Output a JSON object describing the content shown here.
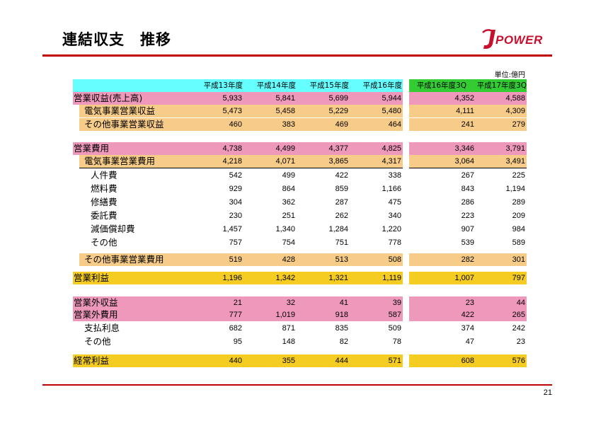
{
  "title": "連結収支　推移",
  "logo_text": "POWER",
  "page_number": "21",
  "unit": "単位:億円",
  "columns": [
    "平成13年度",
    "平成14年度",
    "平成15年度",
    "平成16年度",
    "平成16年度3Q",
    "平成17年度3Q"
  ],
  "colors": {
    "header": "#66ffff",
    "header_3q": "#33cc33",
    "pink": "#ee99bb",
    "tan": "#f7cc88",
    "gold": "#f5cc22",
    "rule": "#c00000"
  },
  "rows": [
    {
      "label": "営業収益(売上高)",
      "values": [
        "5,933",
        "5,841",
        "5,699",
        "5,944",
        "4,352",
        "4,588"
      ]
    },
    {
      "label": "電気事業営業収益",
      "values": [
        "5,473",
        "5,458",
        "5,229",
        "5,480",
        "4,111",
        "4,309"
      ]
    },
    {
      "label": "その他事業営業収益",
      "values": [
        "460",
        "383",
        "469",
        "464",
        "241",
        "279"
      ]
    },
    {
      "label": "営業費用",
      "values": [
        "4,738",
        "4,499",
        "4,377",
        "4,825",
        "3,346",
        "3,791"
      ]
    },
    {
      "label": "電気事業営業費用",
      "values": [
        "4,218",
        "4,071",
        "3,865",
        "4,317",
        "3,064",
        "3,491"
      ]
    },
    {
      "label": "人件費",
      "values": [
        "542",
        "499",
        "422",
        "338",
        "267",
        "225"
      ]
    },
    {
      "label": "燃料費",
      "values": [
        "929",
        "864",
        "859",
        "1,166",
        "843",
        "1,194"
      ]
    },
    {
      "label": "修繕費",
      "values": [
        "304",
        "362",
        "287",
        "475",
        "286",
        "289"
      ]
    },
    {
      "label": "委託費",
      "values": [
        "230",
        "251",
        "262",
        "340",
        "223",
        "209"
      ]
    },
    {
      "label": "減価償却費",
      "values": [
        "1,457",
        "1,340",
        "1,284",
        "1,220",
        "907",
        "984"
      ]
    },
    {
      "label": "その他",
      "values": [
        "757",
        "754",
        "751",
        "778",
        "539",
        "589"
      ]
    },
    {
      "label": "その他事業営業費用",
      "values": [
        "519",
        "428",
        "513",
        "508",
        "282",
        "301"
      ]
    },
    {
      "label": "営業利益",
      "values": [
        "1,196",
        "1,342",
        "1,321",
        "1,119",
        "1,007",
        "797"
      ]
    },
    {
      "label": "営業外収益",
      "values": [
        "21",
        "32",
        "41",
        "39",
        "23",
        "44"
      ]
    },
    {
      "label": "営業外費用",
      "values": [
        "777",
        "1,019",
        "918",
        "587",
        "422",
        "265"
      ]
    },
    {
      "label": "支払利息",
      "values": [
        "682",
        "871",
        "835",
        "509",
        "374",
        "242"
      ]
    },
    {
      "label": "その他",
      "values": [
        "95",
        "148",
        "82",
        "78",
        "47",
        "23"
      ]
    },
    {
      "label": "経常利益",
      "values": [
        "440",
        "355",
        "444",
        "571",
        "608",
        "576"
      ]
    }
  ]
}
